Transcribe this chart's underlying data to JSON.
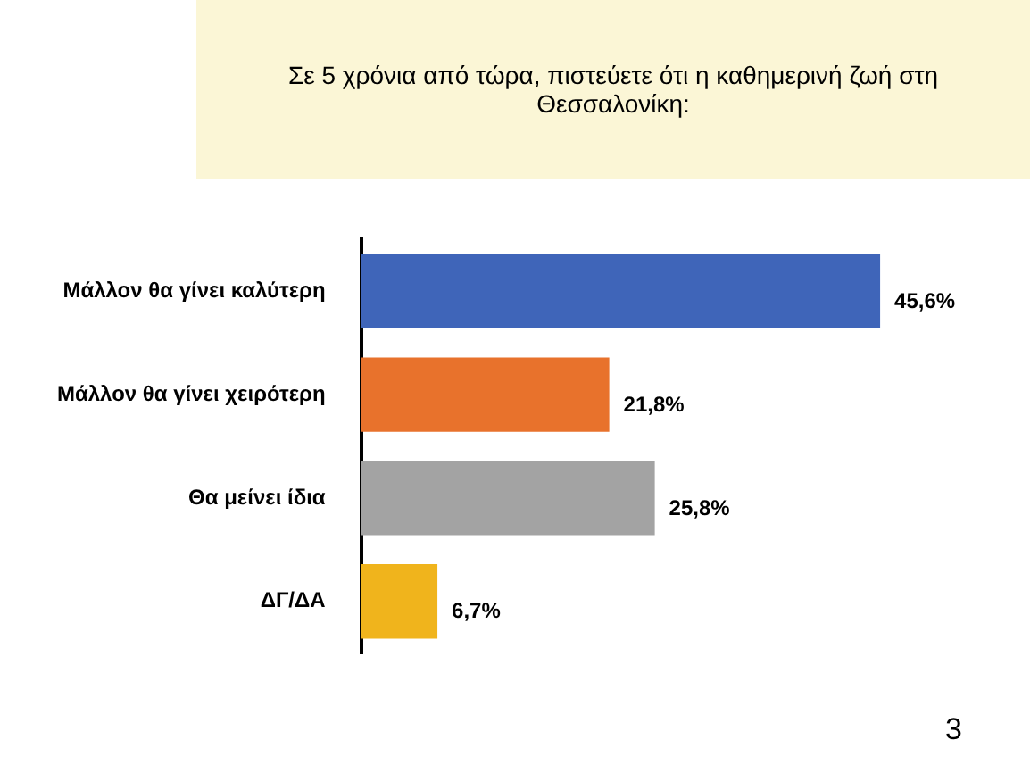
{
  "chart_data": {
    "type": "bar",
    "orientation": "horizontal",
    "title": "Σε 5 χρόνια από τώρα, πιστεύετε ότι η καθημερινή ζωή στη Θεσσαλονίκη:",
    "categories": [
      "Μάλλον θα γίνει καλύτερη",
      "Μάλλον θα γίνει χειρότερη",
      "Θα μείνει ίδια",
      "ΔΓ/ΔΑ"
    ],
    "values": [
      45.6,
      21.8,
      25.8,
      6.7
    ],
    "colors": [
      "#3f65b9",
      "#e8722c",
      "#a3a3a3",
      "#f0b41c"
    ],
    "value_labels": [
      "45,6%",
      "21,8%",
      "25,8%",
      "6,7%"
    ],
    "legend": false,
    "annotations": [
      "3"
    ]
  }
}
